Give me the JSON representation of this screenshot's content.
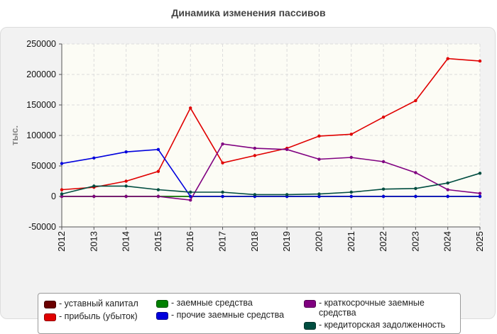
{
  "page": {
    "title": "Динамика изменения пассивов"
  },
  "colors": {
    "background": "#f2f2f2",
    "plot_background": "#fcfcf5",
    "grid": "#dcdcdc"
  },
  "chart_data": {
    "type": "line",
    "title": "Динамика изменения пассивов",
    "xlabel": "",
    "ylabel": "тыс.",
    "ylim": [
      -50000,
      250000
    ],
    "yticks": [
      -50000,
      0,
      50000,
      100000,
      150000,
      200000,
      250000
    ],
    "ytick_labels": [
      "-50000",
      "0",
      "50000",
      "100000",
      "150000",
      "200000",
      "250000"
    ],
    "grid": true,
    "legend_position": "bottom",
    "categories": [
      "2012",
      "2013",
      "2014",
      "2015",
      "2016",
      "2017",
      "2018",
      "2019",
      "2020",
      "2021",
      "2022",
      "2023",
      "2024",
      "2025"
    ],
    "series": [
      {
        "name": "- уставный капитал",
        "color": "#6b0000",
        "values": [
          0,
          0,
          0,
          0,
          0,
          0,
          0,
          0,
          0,
          0,
          0,
          0,
          0,
          0
        ]
      },
      {
        "name": "- прибыль (убыток)",
        "color": "#e00000",
        "values": [
          11000,
          15000,
          25000,
          41000,
          145000,
          55000,
          67000,
          79000,
          99000,
          102000,
          130000,
          157000,
          226000,
          222000
        ]
      },
      {
        "name": "- заемные средства",
        "color": "#008000",
        "values": [
          0,
          0,
          0,
          0,
          0,
          0,
          0,
          0,
          0,
          0,
          0,
          0,
          0,
          0
        ]
      },
      {
        "name": "- прочие заемные средства",
        "color": "#0000dd",
        "values": [
          54000,
          63000,
          73000,
          77000,
          0,
          0,
          0,
          0,
          0,
          0,
          0,
          0,
          0,
          0
        ]
      },
      {
        "name": "- краткосрочные заемные средства",
        "color": "#800080",
        "values": [
          0,
          0,
          0,
          0,
          -6000,
          86000,
          79000,
          77000,
          61000,
          64000,
          57000,
          39000,
          11000,
          5000
        ]
      },
      {
        "name": "- кредиторская задолженность",
        "color": "#004d40",
        "values": [
          4000,
          17000,
          17000,
          11000,
          7000,
          7000,
          3000,
          3000,
          4000,
          7000,
          12000,
          13000,
          22000,
          38000
        ]
      }
    ]
  }
}
